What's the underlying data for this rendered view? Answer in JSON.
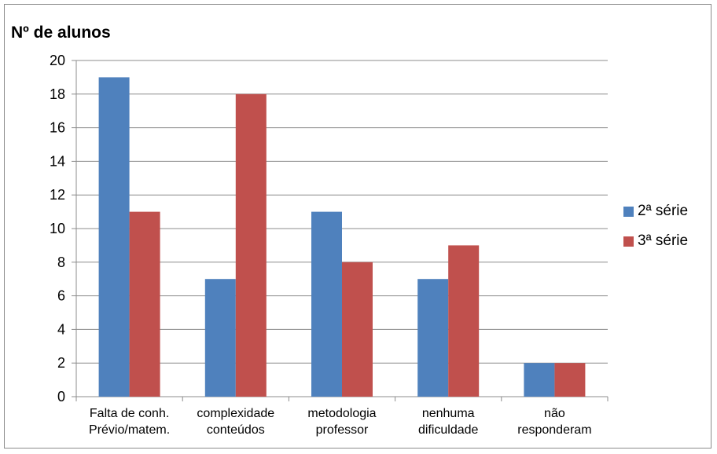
{
  "chart_data": {
    "type": "bar",
    "ylabel": "Nº de alunos",
    "ylim": [
      0,
      20
    ],
    "yticks": [
      0,
      2,
      4,
      6,
      8,
      10,
      12,
      14,
      16,
      18,
      20
    ],
    "categories": [
      [
        "Falta de conh.",
        "Prévio/matem."
      ],
      [
        "complexidade",
        "conteúdos"
      ],
      [
        "metodologia",
        "professor"
      ],
      [
        "nenhuma",
        "dificuldade"
      ],
      [
        "não",
        "responderam"
      ]
    ],
    "series": [
      {
        "name": "2ª série",
        "color": "#4f81bd",
        "values": [
          19,
          7,
          11,
          7,
          2
        ]
      },
      {
        "name": "3ª série",
        "color": "#c0504d",
        "values": [
          11,
          18,
          8,
          9,
          2
        ]
      }
    ],
    "grid": true,
    "legend": "right"
  }
}
